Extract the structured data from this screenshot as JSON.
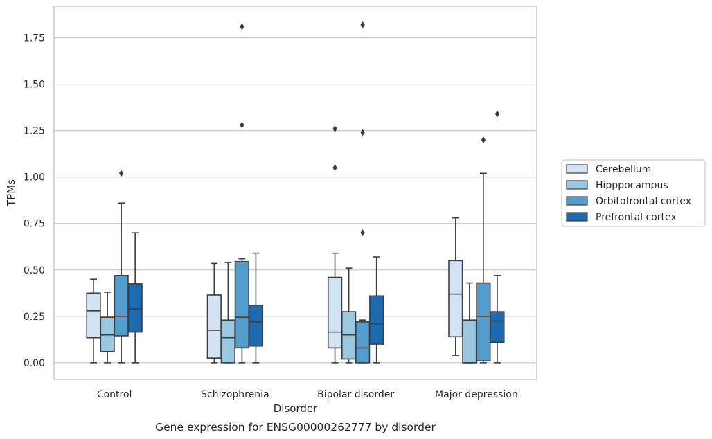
{
  "chart_data": {
    "type": "box",
    "title": "",
    "caption": "Gene expression for ENSG00000262777 by disorder",
    "xlabel": "Disorder",
    "ylabel": "TPMs",
    "ylim": [
      -0.09,
      1.92
    ],
    "yticks": [
      0.0,
      0.25,
      0.5,
      0.75,
      1.0,
      1.25,
      1.5,
      1.75
    ],
    "ytick_labels": [
      "0.00",
      "0.25",
      "0.50",
      "0.75",
      "1.00",
      "1.25",
      "1.50",
      "1.75"
    ],
    "grid": true,
    "legend_position": "right",
    "categories": [
      "Control",
      "Schizophrenia",
      "Bipolar disorder",
      "Major depression"
    ],
    "series": [
      {
        "name": "Cerebellum",
        "color": "#d2e3f3",
        "boxes": [
          {
            "whisker_low": 0.0,
            "q1": 0.135,
            "median": 0.28,
            "q3": 0.375,
            "whisker_high": 0.45,
            "outliers": []
          },
          {
            "whisker_low": 0.0,
            "q1": 0.025,
            "median": 0.175,
            "q3": 0.365,
            "whisker_high": 0.535,
            "outliers": []
          },
          {
            "whisker_low": 0.0,
            "q1": 0.08,
            "median": 0.165,
            "q3": 0.46,
            "whisker_high": 0.59,
            "outliers": [
              1.05,
              1.26
            ]
          },
          {
            "whisker_low": 0.04,
            "q1": 0.14,
            "median": 0.37,
            "q3": 0.55,
            "whisker_high": 0.78,
            "outliers": []
          }
        ]
      },
      {
        "name": "Hipppocampus",
        "color": "#9ac8e0",
        "boxes": [
          {
            "whisker_low": 0.0,
            "q1": 0.06,
            "median": 0.15,
            "q3": 0.245,
            "whisker_high": 0.38,
            "outliers": []
          },
          {
            "whisker_low": 0.0,
            "q1": 0.0,
            "median": 0.135,
            "q3": 0.23,
            "whisker_high": 0.54,
            "outliers": []
          },
          {
            "whisker_low": 0.0,
            "q1": 0.02,
            "median": 0.15,
            "q3": 0.275,
            "whisker_high": 0.51,
            "outliers": []
          },
          {
            "whisker_low": 0.0,
            "q1": 0.0,
            "median": 0.0,
            "q3": 0.23,
            "whisker_high": 0.43,
            "outliers": []
          }
        ]
      },
      {
        "name": "Orbitofrontal cortex",
        "color": "#529dcc",
        "boxes": [
          {
            "whisker_low": 0.0,
            "q1": 0.145,
            "median": 0.25,
            "q3": 0.47,
            "whisker_high": 0.86,
            "outliers": [
              1.02
            ]
          },
          {
            "whisker_low": 0.0,
            "q1": 0.08,
            "median": 0.245,
            "q3": 0.545,
            "whisker_high": 0.56,
            "outliers": [
              1.28,
              1.81
            ]
          },
          {
            "whisker_low": 0.0,
            "q1": 0.0,
            "median": 0.08,
            "q3": 0.22,
            "whisker_high": 0.23,
            "outliers": [
              0.7,
              1.24,
              1.82
            ]
          },
          {
            "whisker_low": 0.0,
            "q1": 0.01,
            "median": 0.25,
            "q3": 0.43,
            "whisker_high": 1.02,
            "outliers": [
              1.2
            ]
          }
        ]
      },
      {
        "name": "Prefrontal cortex",
        "color": "#1c6aaf",
        "boxes": [
          {
            "whisker_low": 0.0,
            "q1": 0.165,
            "median": 0.29,
            "q3": 0.425,
            "whisker_high": 0.7,
            "outliers": []
          },
          {
            "whisker_low": 0.0,
            "q1": 0.09,
            "median": 0.22,
            "q3": 0.31,
            "whisker_high": 0.59,
            "outliers": []
          },
          {
            "whisker_low": 0.0,
            "q1": 0.1,
            "median": 0.21,
            "q3": 0.36,
            "whisker_high": 0.57,
            "outliers": []
          },
          {
            "whisker_low": 0.0,
            "q1": 0.11,
            "median": 0.225,
            "q3": 0.275,
            "whisker_high": 0.47,
            "outliers": [
              1.34
            ]
          }
        ]
      }
    ]
  }
}
